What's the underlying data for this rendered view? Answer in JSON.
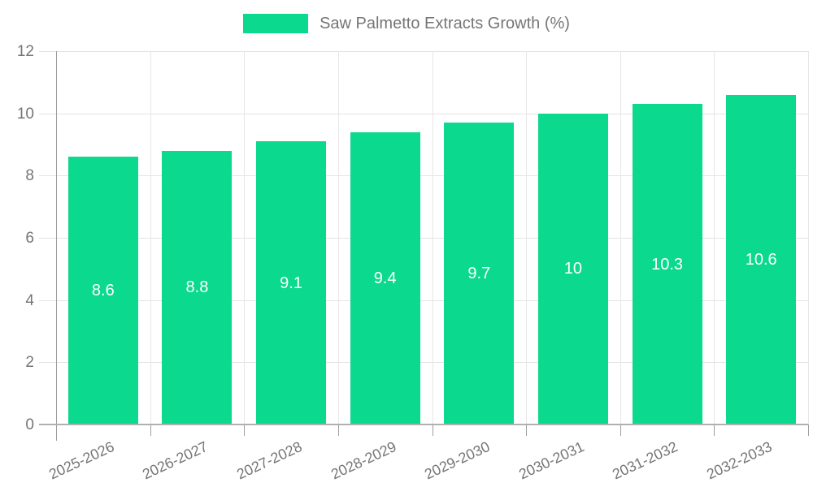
{
  "chart_data": {
    "type": "bar",
    "title": "",
    "legend": {
      "label": "Saw Palmetto Extracts Growth (%)",
      "position": "top"
    },
    "categories": [
      "2025-2026",
      "2026-2027",
      "2027-2028",
      "2028-2029",
      "2029-2030",
      "2030-2031",
      "2031-2032",
      "2032-2033"
    ],
    "values": [
      8.6,
      8.8,
      9.1,
      9.4,
      9.7,
      10,
      10.3,
      10.6
    ],
    "value_labels": [
      "8.6",
      "8.8",
      "9.1",
      "9.4",
      "9.7",
      "10",
      "10.3",
      "10.6"
    ],
    "xlabel": "",
    "ylabel": "",
    "ylim": [
      0,
      12
    ],
    "yticks": [
      0,
      2,
      4,
      6,
      8,
      10,
      12
    ],
    "grid": true,
    "x_label_rotation_deg": -25,
    "colors": {
      "bar": "#0bd98d",
      "bar_label_text": "#ffffff",
      "axis_text": "#757575",
      "gridline": "#e3e3e3",
      "axis_line": "#9e9e9e",
      "background": "#ffffff"
    }
  }
}
